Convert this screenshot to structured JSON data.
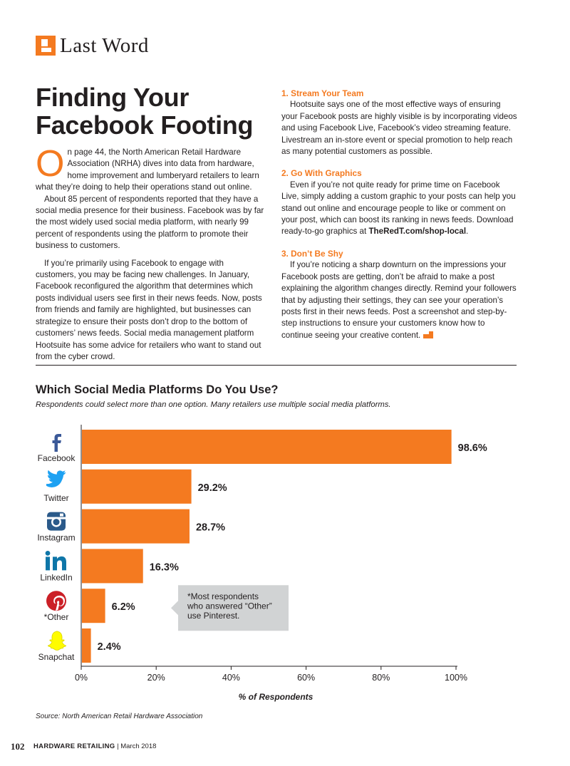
{
  "header": {
    "section_label": "Last Word",
    "headline_line1": "Finding Your",
    "headline_line2": "Facebook Footing"
  },
  "left_column": {
    "dropcap": "O",
    "p1": "n page 44, the North American Retail Hardware Association (NRHA) dives into data from hardware, home improvement and lumberyard retailers to learn what they’re doing to help their operations stand out online.",
    "p2": "About 85 percent of respondents reported that they have a social media presence for their business. Facebook was by far the most widely used social media platform, with nearly 99 percent of respondents using the platform to promote their business to customers.",
    "p3": "If you’re primarily using Facebook to engage with customers, you may be facing new challenges. In January, Facebook reconfigured the algorithm that determines which posts individual users see first in their news feeds. Now, posts from friends and family are highlighted, but businesses can strategize to ensure their posts don’t drop to the bottom of customers’ news feeds. Social media management platform Hootsuite has some advice for retailers who want to stand out from the cyber crowd."
  },
  "right_column": {
    "tip1_heading": "1. Stream Your Team",
    "tip1_body": "Hootsuite says one of the most effective ways of ensuring your Facebook posts are highly visible is by incorporating videos and using Facebook Live, Facebook’s video streaming feature. Livestream an in-store event or special promotion to help reach as many potential customers as possible.",
    "tip2_heading": "2. Go With Graphics",
    "tip2_body": "Even if you’re not quite ready for prime time on Facebook Live, simply adding a custom graphic to your posts can help you stand out online and encourage people to like or comment on your post, which can boost its ranking in news feeds. Download ready-to-go graphics at",
    "tip2_link": "TheRedT.com/shop-local",
    "tip2_end": ".",
    "tip3_heading": "3. Don’t Be Shy",
    "tip3_body": "If you’re noticing a sharp downturn on the impressions your Facebook posts are getting, don’t be afraid to make a post explaining the algorithm changes directly. Remind your followers that by adjusting their settings, they can see your operation’s posts first in their news feeds. Post a screenshot and step-by-step instructions to ensure your customers know how to continue seeing your creative content."
  },
  "chart_title": "Which Social Media Platforms Do You Use?",
  "chart_subtitle": "Respondents could select more than one option. Many retailers use multiple social media platforms.",
  "chart_source": "Source: North American Retail Hardware Association",
  "chart_data": {
    "type": "bar",
    "orientation": "horizontal",
    "categories": [
      "Facebook",
      "Twitter",
      "Instagram",
      "LinkedIn",
      "*Other",
      "Snapchat"
    ],
    "values": [
      98.6,
      29.2,
      28.7,
      16.3,
      6.2,
      2.4
    ],
    "value_labels": [
      "98.6%",
      "29.2%",
      "28.7%",
      "16.3%",
      "6.2%",
      "2.4%"
    ],
    "icons": [
      "facebook-icon",
      "twitter-icon",
      "instagram-icon",
      "linkedin-icon",
      "pinterest-icon",
      "snapchat-icon"
    ],
    "icon_colors": [
      "#3b5998",
      "#1da1f2",
      "#2b5a8a",
      "#0e76a8",
      "#cb2027",
      "#fffc00"
    ],
    "bar_color": "#f47a20",
    "xlim": [
      0,
      100
    ],
    "xticks": [
      "0%",
      "20%",
      "40%",
      "60%",
      "80%",
      "100%"
    ],
    "xlabel": "% of Respondents",
    "annotation": {
      "line1": "*Most respondents",
      "line2": "who answered “Other”",
      "line3": "use Pinterest.",
      "target": "*Other"
    }
  },
  "footer": {
    "page_number": "102",
    "publication": "HARDWARE RETAILING",
    "separator": " | ",
    "date": "March 2018"
  },
  "colors": {
    "accent": "#f47a20",
    "text": "#231f20"
  }
}
